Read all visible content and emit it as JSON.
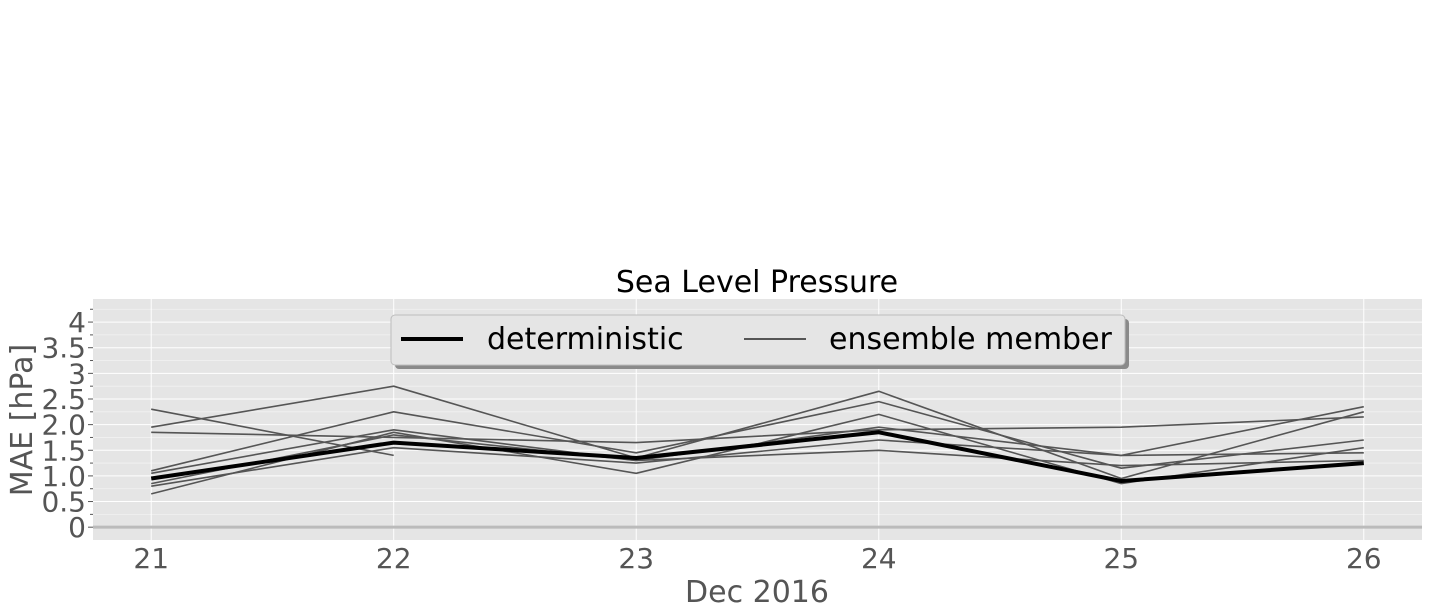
{
  "chart_data": {
    "type": "line",
    "title": "Sea Level Pressure",
    "xlabel": "Dec 2016",
    "ylabel": "MAE [hPa]",
    "x": [
      "21",
      "22",
      "23",
      "24",
      "25",
      "26"
    ],
    "xlim": [
      20.76,
      26.24
    ],
    "ylim": [
      -0.25,
      4.45
    ],
    "yticks": [
      0,
      0.5,
      1.0,
      1.5,
      2.0,
      2.5,
      3,
      3.5,
      4
    ],
    "ytick_labels": [
      "0",
      "0.5",
      "1.0",
      "1.5",
      "2.0",
      "2.5",
      "3",
      "3.5",
      "4"
    ],
    "grid": true,
    "legend": {
      "placement": "upper center",
      "columns": 2
    },
    "series": [
      {
        "name": "deterministic",
        "color": "#000000",
        "role": "deterministic",
        "values": [
          0.95,
          1.65,
          1.35,
          1.85,
          0.9,
          1.25
        ]
      },
      {
        "name": "ensemble member",
        "color": "#555555",
        "role": "ensemble",
        "values": [
          2.3,
          1.4,
          null,
          null,
          null,
          null
        ]
      },
      {
        "name": "",
        "color": "#555555",
        "role": "ensemble",
        "values": [
          1.95,
          2.75,
          1.35,
          2.65,
          0.95,
          2.25
        ]
      },
      {
        "name": "",
        "color": "#555555",
        "role": "ensemble",
        "values": [
          1.85,
          1.75,
          1.65,
          1.9,
          1.95,
          2.15
        ]
      },
      {
        "name": "",
        "color": "#555555",
        "role": "ensemble",
        "values": [
          1.1,
          2.25,
          1.45,
          2.45,
          1.15,
          1.7
        ]
      },
      {
        "name": "",
        "color": "#555555",
        "role": "ensemble",
        "values": [
          0.65,
          1.85,
          1.05,
          2.2,
          0.85,
          1.55
        ]
      },
      {
        "name": "",
        "color": "#555555",
        "role": "ensemble",
        "values": [
          0.85,
          1.8,
          1.3,
          1.95,
          1.4,
          1.45
        ]
      },
      {
        "name": "",
        "color": "#555555",
        "role": "ensemble",
        "values": [
          0.8,
          1.55,
          1.25,
          1.7,
          1.4,
          2.35
        ]
      },
      {
        "name": "",
        "color": "#555555",
        "role": "ensemble",
        "values": [
          1.05,
          1.9,
          1.3,
          1.5,
          1.2,
          1.3
        ]
      }
    ]
  }
}
